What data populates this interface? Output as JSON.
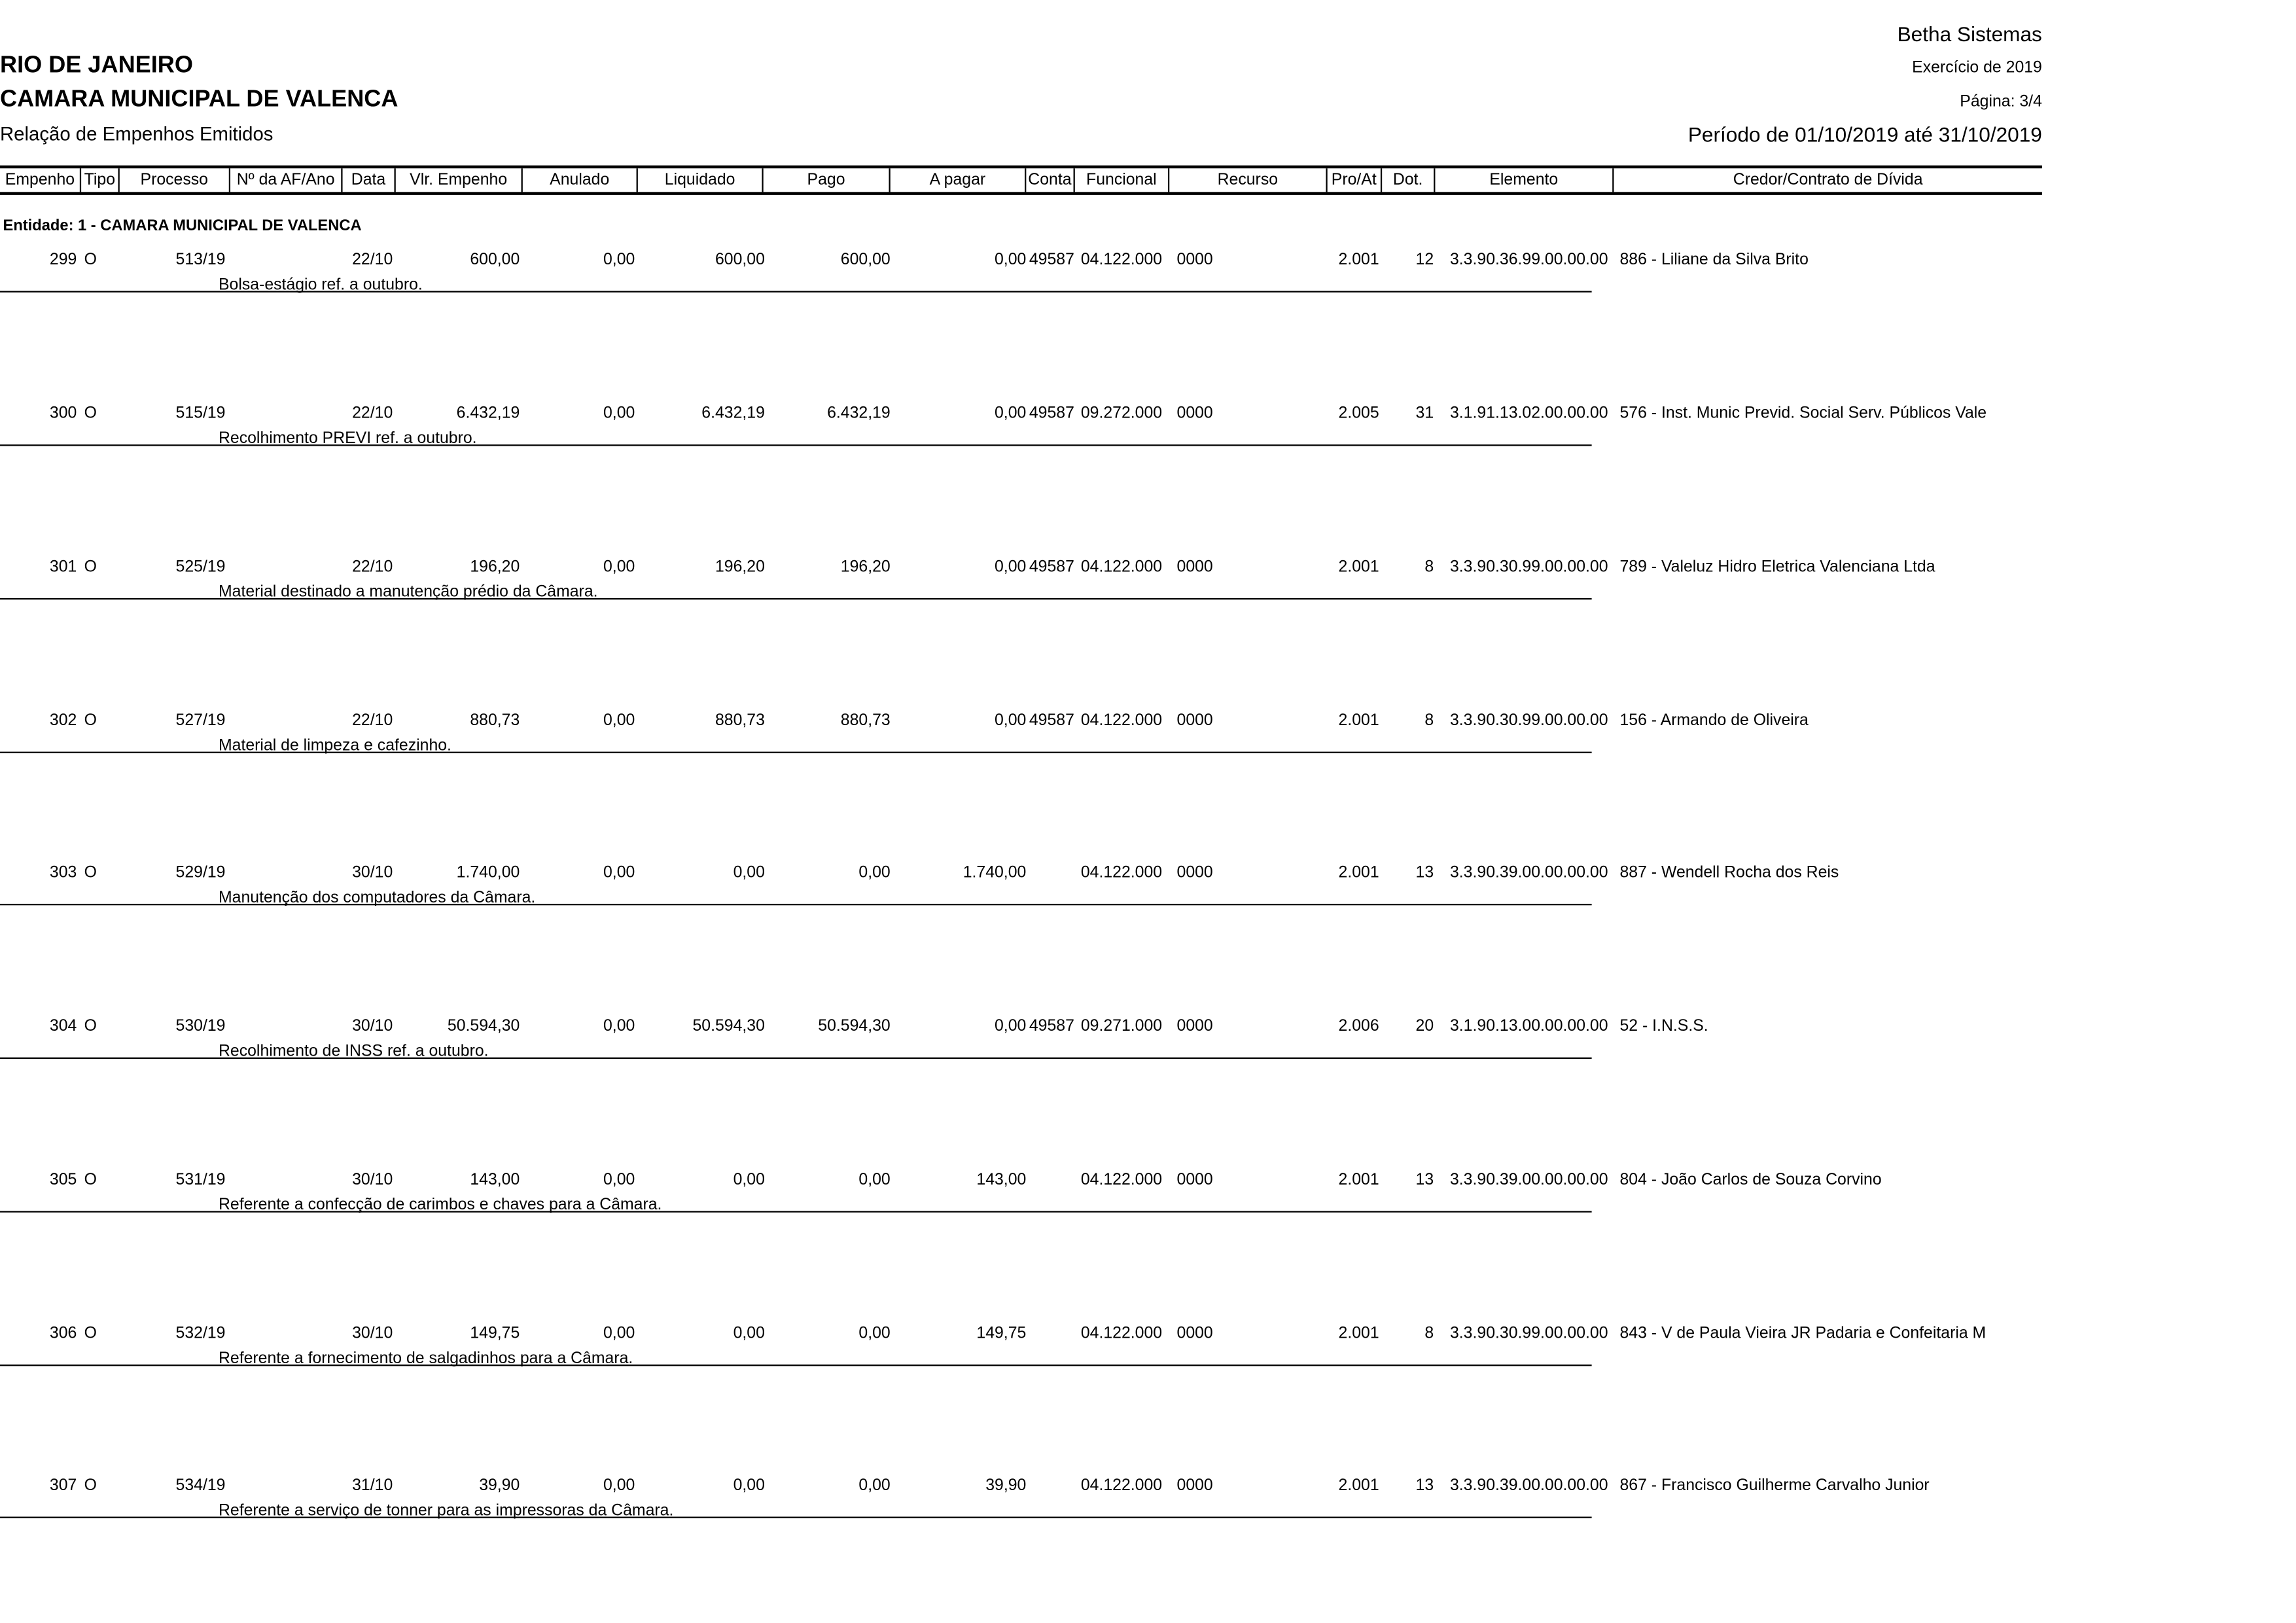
{
  "header": {
    "company": "Betha Sistemas",
    "state": "RIO DE JANEIRO",
    "entity": "CAMARA MUNICIPAL DE VALENCA",
    "report_title": "Relação de Empenhos Emitidos",
    "exercise": "Exercício de 2019",
    "page": "Página: 3/4",
    "period": "Período de 01/10/2019 até 31/10/2019"
  },
  "columns": [
    "Empenho",
    "Tipo",
    "Processo",
    "Nº da AF/Ano",
    "Data",
    "Vlr. Empenho",
    "Anulado",
    "Liquidado",
    "Pago",
    "A pagar",
    "Conta",
    "Funcional",
    "Recurso",
    "Pro/At",
    "Dot.",
    "Elemento",
    "Credor/Contrato de Dívida"
  ],
  "group_label": "Entidade: 1 - CAMARA MUNICIPAL DE VALENCA",
  "rows": [
    {
      "empenho": "299",
      "tipo": "O",
      "processo": "513/19",
      "af": "",
      "data": "22/10",
      "vlr": "600,00",
      "anulado": "0,00",
      "liquidado": "600,00",
      "pago": "600,00",
      "apagar": "0,00",
      "conta": "49587",
      "funcional": "04.122.000",
      "recurso": "0000",
      "proat": "2.001",
      "dot": "12",
      "elemento": "3.3.90.36.99.00.00.00",
      "credor": "886 - Liliane da Silva Brito",
      "descricao": "Bolsa-estágio ref. a outubro."
    },
    {
      "empenho": "300",
      "tipo": "O",
      "processo": "515/19",
      "af": "",
      "data": "22/10",
      "vlr": "6.432,19",
      "anulado": "0,00",
      "liquidado": "6.432,19",
      "pago": "6.432,19",
      "apagar": "0,00",
      "conta": "49587",
      "funcional": "09.272.000",
      "recurso": "0000",
      "proat": "2.005",
      "dot": "31",
      "elemento": "3.1.91.13.02.00.00.00",
      "credor": "576 - Inst. Munic Previd. Social Serv. Públicos Vale",
      "descricao": "Recolhimento PREVI ref. a outubro."
    },
    {
      "empenho": "301",
      "tipo": "O",
      "processo": "525/19",
      "af": "",
      "data": "22/10",
      "vlr": "196,20",
      "anulado": "0,00",
      "liquidado": "196,20",
      "pago": "196,20",
      "apagar": "0,00",
      "conta": "49587",
      "funcional": "04.122.000",
      "recurso": "0000",
      "proat": "2.001",
      "dot": "8",
      "elemento": "3.3.90.30.99.00.00.00",
      "credor": "789 - Valeluz Hidro Eletrica Valenciana Ltda",
      "descricao": "Material destinado a manutenção prédio da Câmara."
    },
    {
      "empenho": "302",
      "tipo": "O",
      "processo": "527/19",
      "af": "",
      "data": "22/10",
      "vlr": "880,73",
      "anulado": "0,00",
      "liquidado": "880,73",
      "pago": "880,73",
      "apagar": "0,00",
      "conta": "49587",
      "funcional": "04.122.000",
      "recurso": "0000",
      "proat": "2.001",
      "dot": "8",
      "elemento": "3.3.90.30.99.00.00.00",
      "credor": "156 - Armando de Oliveira",
      "descricao": "Material de limpeza e cafezinho."
    },
    {
      "empenho": "303",
      "tipo": "O",
      "processo": "529/19",
      "af": "",
      "data": "30/10",
      "vlr": "1.740,00",
      "anulado": "0,00",
      "liquidado": "0,00",
      "pago": "0,00",
      "apagar": "1.740,00",
      "conta": "",
      "funcional": "04.122.000",
      "recurso": "0000",
      "proat": "2.001",
      "dot": "13",
      "elemento": "3.3.90.39.00.00.00.00",
      "credor": "887 - Wendell Rocha dos Reis",
      "descricao": "Manutenção dos computadores da Câmara."
    },
    {
      "empenho": "304",
      "tipo": "O",
      "processo": "530/19",
      "af": "",
      "data": "30/10",
      "vlr": "50.594,30",
      "anulado": "0,00",
      "liquidado": "50.594,30",
      "pago": "50.594,30",
      "apagar": "0,00",
      "conta": "49587",
      "funcional": "09.271.000",
      "recurso": "0000",
      "proat": "2.006",
      "dot": "20",
      "elemento": "3.1.90.13.00.00.00.00",
      "credor": "52 - I.N.S.S.",
      "descricao": "Recolhimento de INSS ref. a outubro."
    },
    {
      "empenho": "305",
      "tipo": "O",
      "processo": "531/19",
      "af": "",
      "data": "30/10",
      "vlr": "143,00",
      "anulado": "0,00",
      "liquidado": "0,00",
      "pago": "0,00",
      "apagar": "143,00",
      "conta": "",
      "funcional": "04.122.000",
      "recurso": "0000",
      "proat": "2.001",
      "dot": "13",
      "elemento": "3.3.90.39.00.00.00.00",
      "credor": "804 - João Carlos de Souza Corvino",
      "descricao": "Referente a confecção de carimbos e chaves para a Câmara."
    },
    {
      "empenho": "306",
      "tipo": "O",
      "processo": "532/19",
      "af": "",
      "data": "30/10",
      "vlr": "149,75",
      "anulado": "0,00",
      "liquidado": "0,00",
      "pago": "0,00",
      "apagar": "149,75",
      "conta": "",
      "funcional": "04.122.000",
      "recurso": "0000",
      "proat": "2.001",
      "dot": "8",
      "elemento": "3.3.90.30.99.00.00.00",
      "credor": "843 - V de Paula Vieira JR Padaria e Confeitaria M",
      "descricao": "Referente a fornecimento de salgadinhos para a Câmara."
    },
    {
      "empenho": "307",
      "tipo": "O",
      "processo": "534/19",
      "af": "",
      "data": "31/10",
      "vlr": "39,90",
      "anulado": "0,00",
      "liquidado": "0,00",
      "pago": "0,00",
      "apagar": "39,90",
      "conta": "",
      "funcional": "04.122.000",
      "recurso": "0000",
      "proat": "2.001",
      "dot": "13",
      "elemento": "3.3.90.39.00.00.00.00",
      "credor": "867 - Francisco Guilherme Carvalho Junior",
      "descricao": "Referente a serviço de tonner para as impressoras da Câmara."
    }
  ]
}
